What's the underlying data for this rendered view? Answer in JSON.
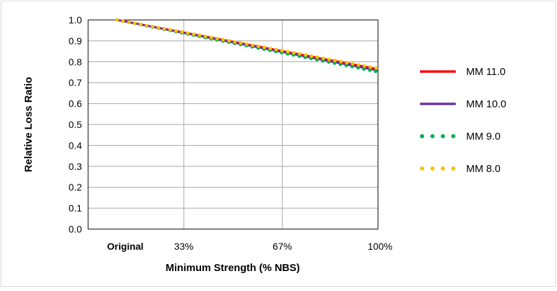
{
  "chart_data": {
    "type": "line",
    "title": "",
    "xlabel": "Minimum Strength (% NBS)",
    "ylabel": "Relative Loss Ratio",
    "ylim": [
      0,
      1
    ],
    "xlim": [
      0,
      100
    ],
    "x_tick_labels": [
      {
        "x": 0,
        "label": "Original"
      },
      {
        "x": 33,
        "label": "33%"
      },
      {
        "x": 67,
        "label": "67%"
      },
      {
        "x": 100,
        "label": "100%"
      }
    ],
    "y_tick_labels": [
      "0.0",
      "0.1",
      "0.2",
      "0.3",
      "0.4",
      "0.5",
      "0.6",
      "0.7",
      "0.8",
      "0.9",
      "1.0"
    ],
    "y_ticks": [
      0,
      0.1,
      0.2,
      0.3,
      0.4,
      0.5,
      0.6,
      0.7,
      0.8,
      0.9,
      1.0
    ],
    "grid": true,
    "legend_position": "right",
    "series": [
      {
        "name": "MM 11.0",
        "style": "solid",
        "color": "#ff0000",
        "x": [
          10,
          100
        ],
        "y": [
          1.0,
          0.765
        ]
      },
      {
        "name": "MM 10.0",
        "style": "solid",
        "color": "#7030a0",
        "x": [
          10,
          100
        ],
        "y": [
          1.0,
          0.758
        ]
      },
      {
        "name": "MM   9.0",
        "style": "dotted",
        "color": "#00b050",
        "x": [
          10,
          100
        ],
        "y": [
          1.0,
          0.752
        ]
      },
      {
        "name": "MM   8.0",
        "style": "dotted",
        "color": "#ffc000",
        "x": [
          10,
          100
        ],
        "y": [
          1.0,
          0.768
        ]
      }
    ]
  }
}
